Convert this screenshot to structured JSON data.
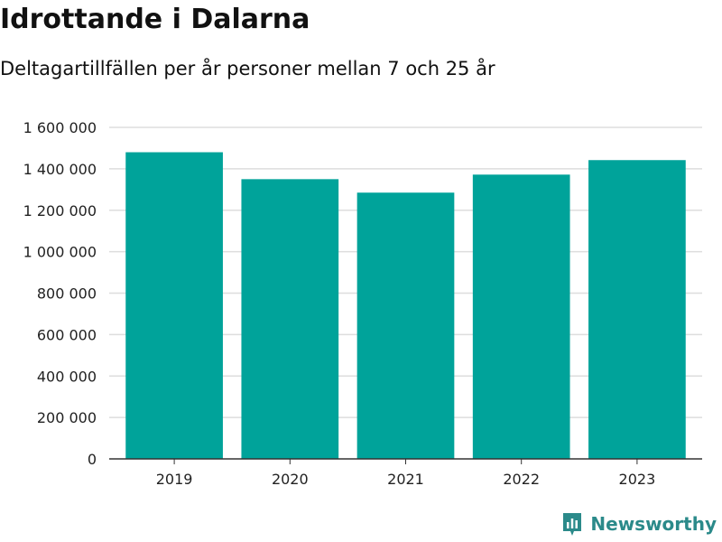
{
  "title": "Idrottande i Dalarna",
  "subtitle": "Deltagartillfällen per år personer mellan 7 och 25 år",
  "brand": {
    "name": "Newsworthy",
    "color": "#2b8a8a"
  },
  "chart_data": {
    "type": "bar",
    "title": "Idrottande i Dalarna",
    "subtitle": "Deltagartillfällen per år personer mellan 7 och 25 år",
    "categories": [
      "2019",
      "2020",
      "2021",
      "2022",
      "2023"
    ],
    "values": [
      1480000,
      1350000,
      1285000,
      1372000,
      1442000
    ],
    "ylim": [
      0,
      1600000
    ],
    "yticks": [
      0,
      200000,
      400000,
      600000,
      800000,
      1000000,
      1200000,
      1400000,
      1600000
    ],
    "ytick_labels": [
      "0",
      "200 000",
      "400 000",
      "600 000",
      "800 000",
      "1 000 000",
      "1 200 000",
      "1 400 000",
      "1 600 000"
    ],
    "bar_color": "#00a39a",
    "grid": true,
    "legend": "none"
  }
}
